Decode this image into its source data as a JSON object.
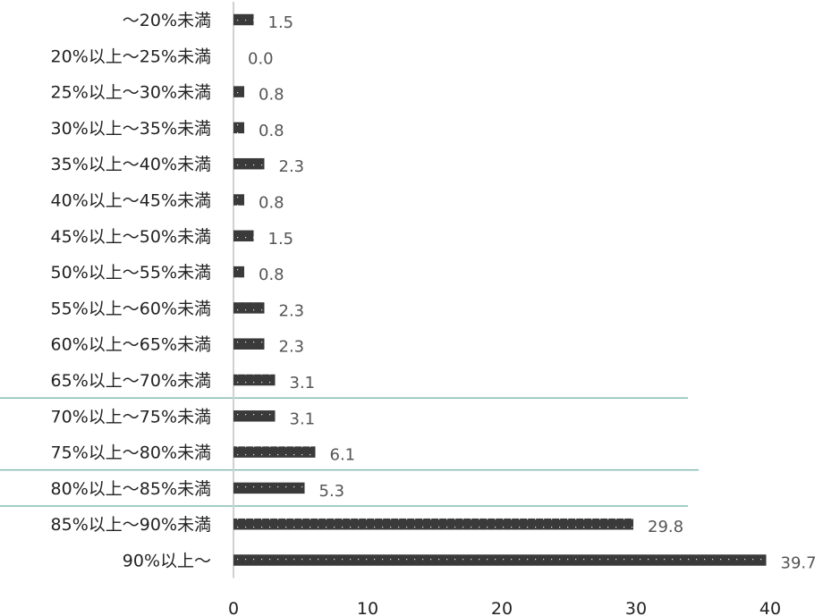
{
  "chart_data": {
    "type": "bar",
    "orientation": "horizontal",
    "title": "",
    "xlabel": "",
    "ylabel": "",
    "categories": [
      "～20%未満",
      "20%以上～25%未満",
      "25%以上～30%未満",
      "30%以上～35%未満",
      "35%以上～40%未満",
      "40%以上～45%未満",
      "45%以上～50%未満",
      "50%以上～55%未満",
      "55%以上～60%未満",
      "60%以上～65%未満",
      "65%以上～70%未満",
      "70%以上～75%未満",
      "75%以上～80%未満",
      "80%以上～85%未満",
      "85%以上～90%未満",
      "90%以上～"
    ],
    "values": [
      1.5,
      0.0,
      0.8,
      0.8,
      2.3,
      0.8,
      1.5,
      0.8,
      2.3,
      2.3,
      3.1,
      3.1,
      6.1,
      5.3,
      29.8,
      39.7
    ],
    "value_labels": [
      "1.5",
      "0.0",
      "0.8",
      "0.8",
      "2.3",
      "0.8",
      "1.5",
      "0.8",
      "2.3",
      "2.3",
      "3.1",
      "3.1",
      "6.1",
      "5.3",
      "29.8",
      "39.7"
    ],
    "xlim": [
      0,
      40
    ],
    "xticks": [
      0,
      10,
      20,
      30,
      40
    ],
    "xtick_labels": [
      "0",
      "10",
      "20",
      "30",
      "40"
    ],
    "grid": false,
    "bar_color": "#3a3a3a",
    "bar_pattern": "dotted",
    "axis_color": "#d0d0d0",
    "separator_color": "#4a9a8c",
    "separators_after_categories": [
      "65%以上～70%未満",
      "75%以上～80%未満",
      "80%以上～85%未満"
    ]
  }
}
